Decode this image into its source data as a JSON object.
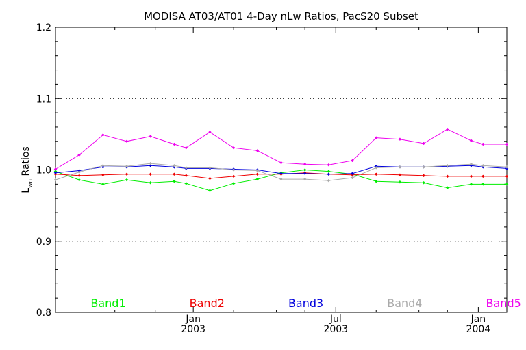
{
  "chart_data": {
    "type": "line",
    "title": "MODISA AT03/AT01 4-Day nLw Ratios, PacS20 Subset",
    "ylabel_main": "L",
    "ylabel_sub": "wn",
    "ylabel_rest": " Ratios",
    "xlabel": "",
    "ylim": [
      0.8,
      1.2
    ],
    "xlim": [
      0,
      19
    ],
    "yticks": [
      "0.8",
      "0.9",
      "1.0",
      "1.1",
      "1.2"
    ],
    "ytick_values": [
      0.8,
      0.9,
      1.0,
      1.1,
      1.2
    ],
    "grid_y": [
      0.9,
      1.0,
      1.1
    ],
    "xticks": [
      {
        "at": 5.8,
        "month": "Jan",
        "year": "2003"
      },
      {
        "at": 11.8,
        "month": "Jul",
        "year": "2003"
      },
      {
        "at": 17.8,
        "month": "Jan",
        "year": "2004"
      }
    ],
    "minor_xticks": [
      2.5,
      4.2,
      7.5,
      9.3,
      10.5,
      13.5,
      15.3,
      16.5
    ],
    "x": [
      0,
      1,
      2,
      3,
      4,
      5,
      5.5,
      6.5,
      7.5,
      8.5,
      9.5,
      10.5,
      11.5,
      12.5,
      13.5,
      14.5,
      15.5,
      16.5,
      17.5,
      18,
      19
    ],
    "series": [
      {
        "name": "Band1",
        "color": "#00ee00",
        "values": [
          0.998,
          0.986,
          0.98,
          0.986,
          0.982,
          0.984,
          0.981,
          0.971,
          0.981,
          0.987,
          0.996,
          1.0,
          0.998,
          0.994,
          0.984,
          0.983,
          0.982,
          0.975,
          0.98,
          0.98,
          0.98
        ]
      },
      {
        "name": "Band2",
        "color": "#ee0000",
        "values": [
          0.994,
          0.992,
          0.993,
          0.994,
          0.994,
          0.994,
          0.992,
          0.988,
          0.991,
          0.994,
          0.994,
          0.996,
          0.994,
          0.993,
          0.994,
          0.993,
          0.992,
          0.991,
          0.991,
          0.991,
          0.991
        ]
      },
      {
        "name": "Band3",
        "color": "#0000dd",
        "values": [
          0.996,
          0.999,
          1.004,
          1.004,
          1.006,
          1.004,
          1.002,
          1.002,
          1.001,
          1.0,
          0.995,
          0.995,
          0.994,
          0.995,
          1.005,
          1.004,
          1.004,
          1.005,
          1.006,
          1.004,
          1.002
        ]
      },
      {
        "name": "Band4",
        "color": "#aaaaaa",
        "values": [
          0.986,
          0.997,
          1.006,
          1.005,
          1.009,
          1.006,
          1.003,
          1.003,
          1.0,
          0.999,
          0.987,
          0.987,
          0.985,
          0.989,
          1.003,
          1.004,
          1.004,
          1.006,
          1.008,
          1.006,
          1.004
        ]
      },
      {
        "name": "Band5",
        "color": "#ee00ee",
        "values": [
          1.001,
          1.021,
          1.049,
          1.04,
          1.047,
          1.036,
          1.031,
          1.053,
          1.031,
          1.027,
          1.01,
          1.008,
          1.007,
          1.013,
          1.045,
          1.043,
          1.037,
          1.057,
          1.041,
          1.036,
          1.036
        ]
      }
    ],
    "legend_placement": "bottom-inside"
  }
}
